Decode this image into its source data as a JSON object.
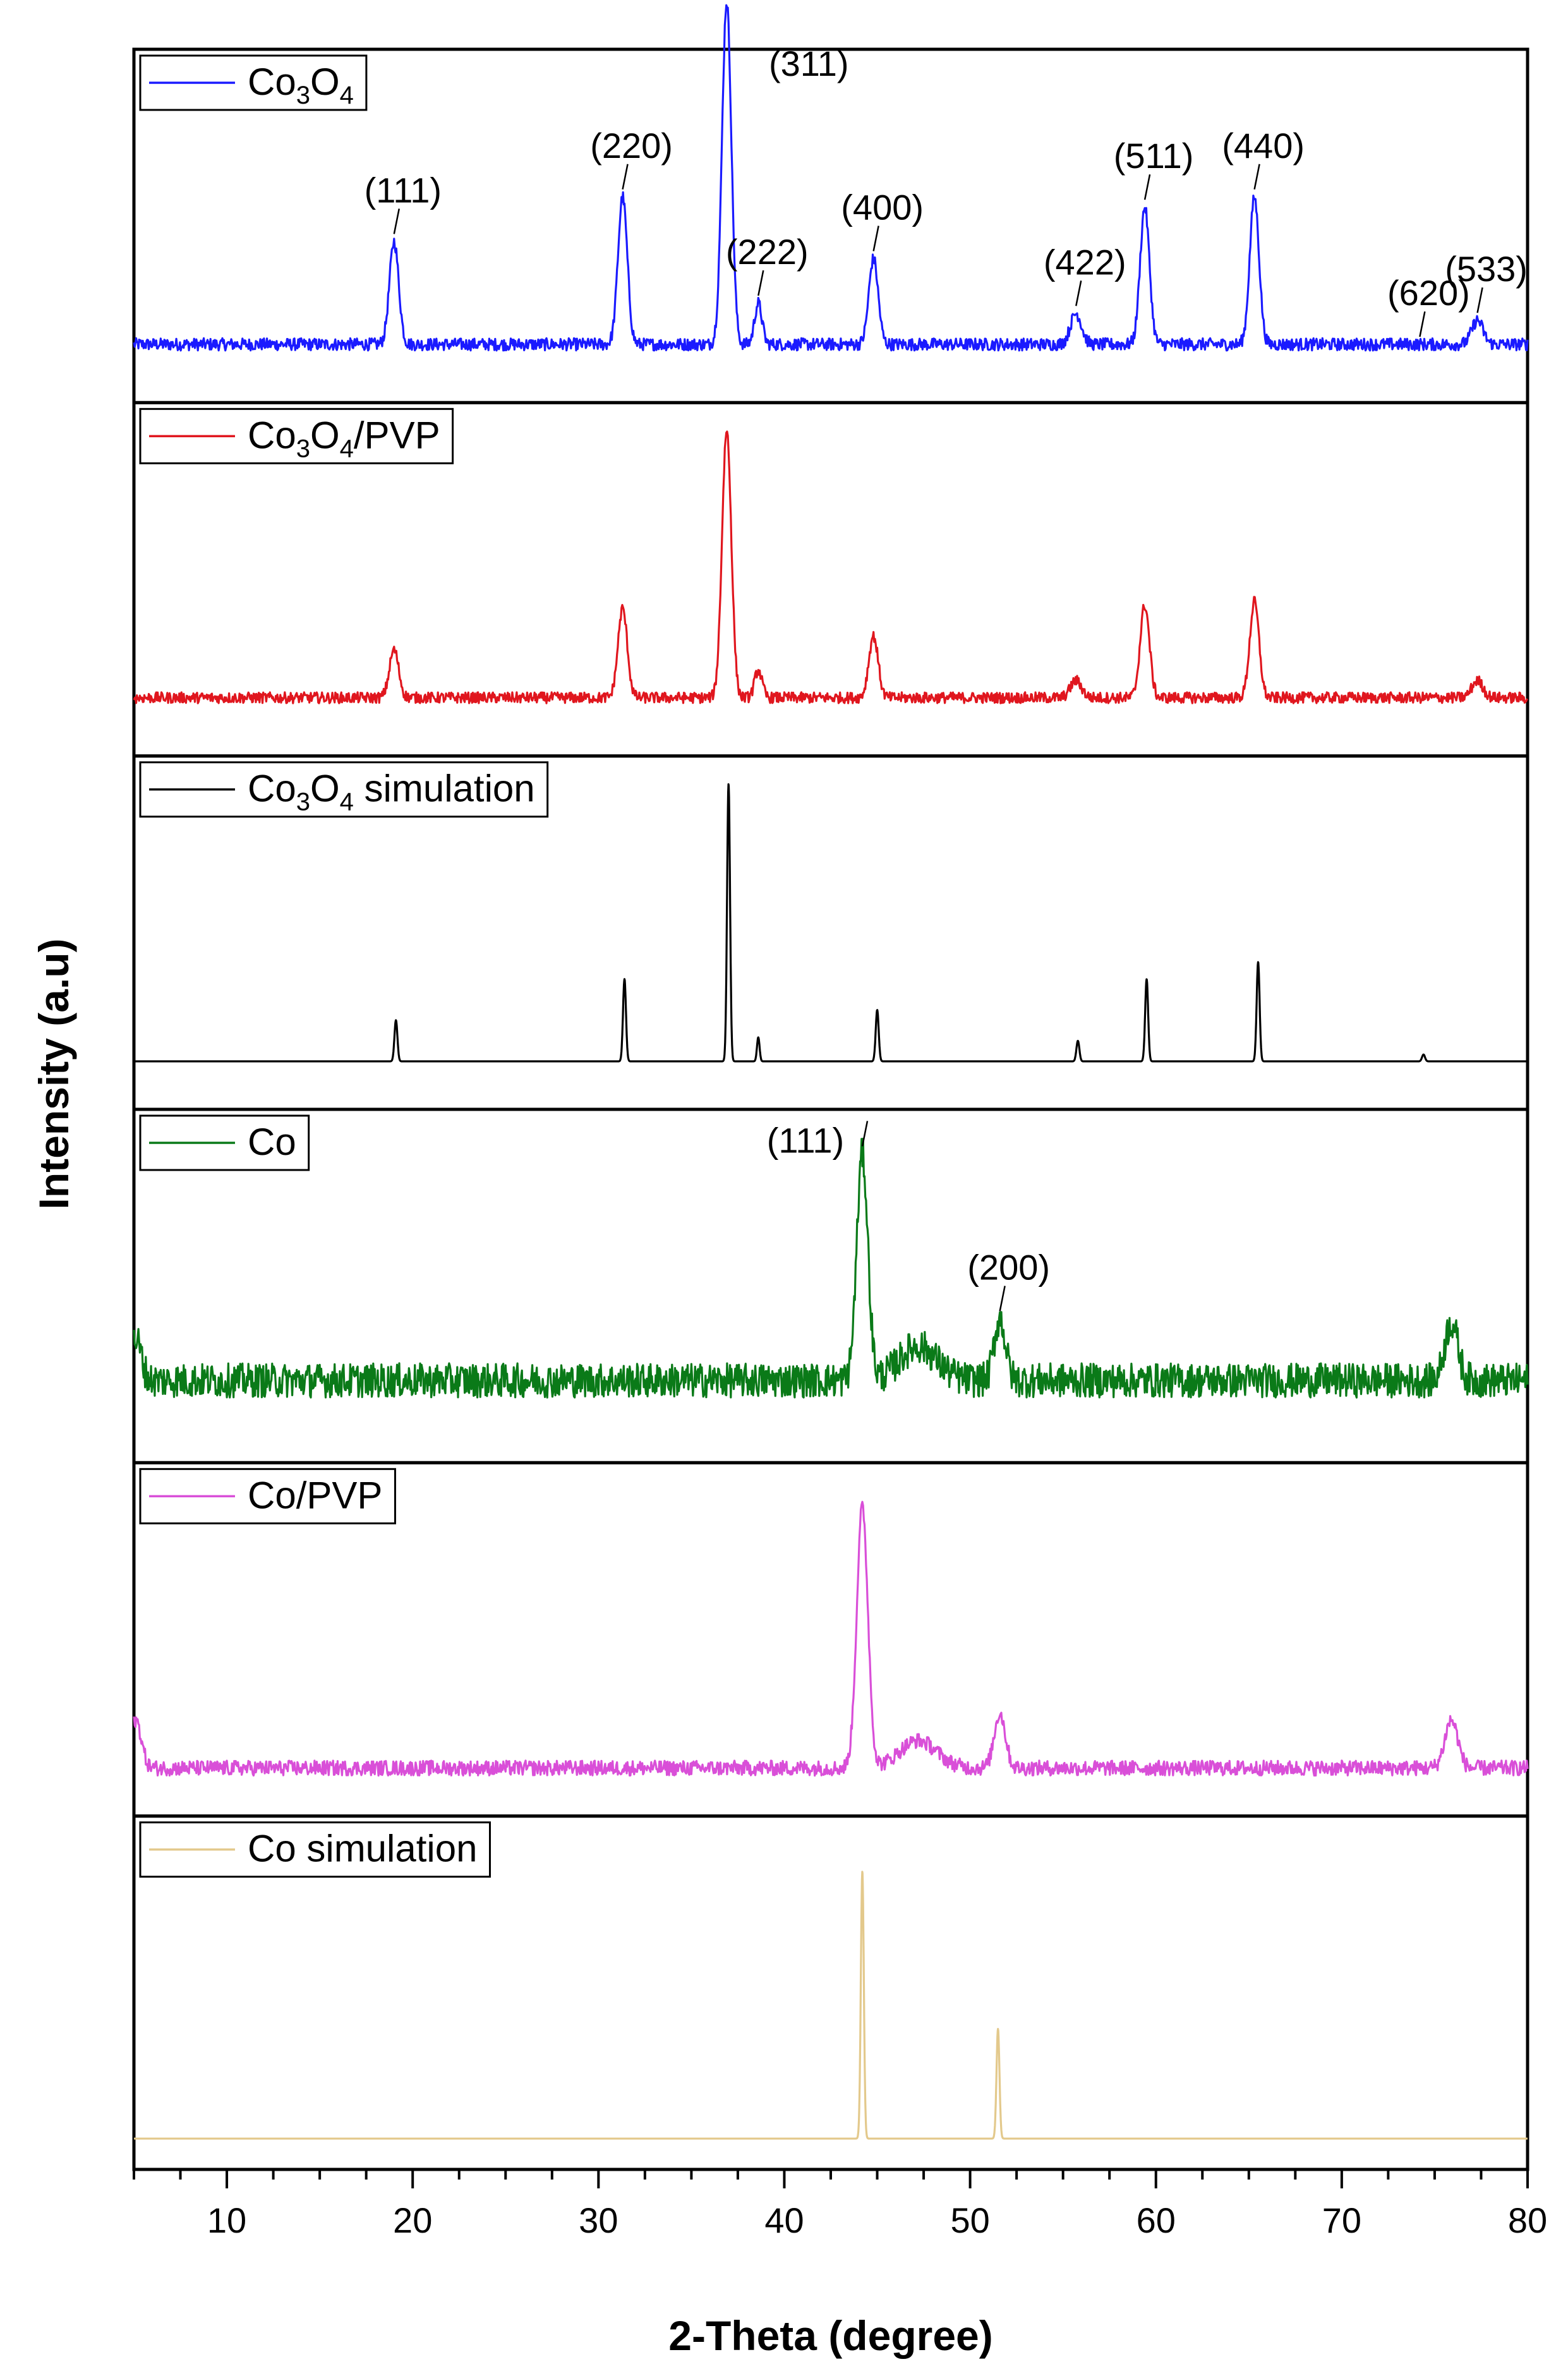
{
  "chart_data": {
    "type": "line",
    "title": "",
    "xlabel": "2-Theta (degree)",
    "ylabel": "Intensity (a.u)",
    "xlim": [
      5,
      80
    ],
    "xticks": [
      10,
      20,
      30,
      40,
      50,
      60,
      70,
      80
    ],
    "grid": false,
    "legend_placement": "top-left of each panel",
    "panels": [
      {
        "legend": {
          "base": "Co",
          "sub1": "3",
          "mid": "O",
          "sub2": "4",
          "suffix": ""
        },
        "color": "#1a1aff",
        "baseline": 0.17,
        "noise": 0.018,
        "peaks": [
          [
            19.0,
            0.3,
            0.25
          ],
          [
            31.3,
            0.43,
            0.25
          ],
          [
            36.9,
            1.0,
            0.25
          ],
          [
            38.6,
            0.12,
            0.2
          ],
          [
            44.8,
            0.25,
            0.25
          ],
          [
            55.7,
            0.09,
            0.3
          ],
          [
            59.4,
            0.4,
            0.25
          ],
          [
            65.3,
            0.43,
            0.25
          ],
          [
            77.3,
            0.07,
            0.3
          ]
        ],
        "annotations": [
          {
            "label": "(111)",
            "x": 19.0
          },
          {
            "label": "(220)",
            "x": 31.3
          },
          {
            "label": "(311)",
            "x": 36.9
          },
          {
            "label": "(222)",
            "x": 38.6
          },
          {
            "label": "(400)",
            "x": 44.8
          },
          {
            "label": "(422)",
            "x": 55.7
          },
          {
            "label": "(511)",
            "x": 59.4
          },
          {
            "label": "(440)",
            "x": 65.3
          },
          {
            "label": "(620)",
            "x": 74.2
          },
          {
            "label": "(533)",
            "x": 77.3
          }
        ]
      },
      {
        "legend": {
          "base": "Co",
          "sub1": "3",
          "mid": "O",
          "sub2": "4",
          "suffix": "/PVP"
        },
        "color": "#e0161e",
        "baseline": 0.17,
        "noise": 0.016,
        "peaks": [
          [
            19.0,
            0.14,
            0.25
          ],
          [
            31.3,
            0.26,
            0.25
          ],
          [
            36.9,
            0.78,
            0.25
          ],
          [
            38.6,
            0.08,
            0.2
          ],
          [
            44.8,
            0.18,
            0.25
          ],
          [
            55.7,
            0.05,
            0.3
          ],
          [
            59.4,
            0.27,
            0.25
          ],
          [
            65.3,
            0.28,
            0.25
          ],
          [
            77.3,
            0.05,
            0.3
          ]
        ],
        "annotations": []
      },
      {
        "legend": {
          "base": "Co",
          "sub1": "3",
          "mid": "O",
          "sub2": "4",
          "suffix": " simulation"
        },
        "color": "#000000",
        "baseline": 0.14,
        "noise": 0.0,
        "peaks": [
          [
            19.1,
            0.12,
            0.08
          ],
          [
            31.4,
            0.24,
            0.08
          ],
          [
            37.0,
            0.81,
            0.08
          ],
          [
            38.6,
            0.07,
            0.07
          ],
          [
            45.0,
            0.15,
            0.08
          ],
          [
            55.8,
            0.06,
            0.08
          ],
          [
            59.5,
            0.24,
            0.08
          ],
          [
            65.5,
            0.29,
            0.08
          ],
          [
            74.4,
            0.02,
            0.08
          ]
        ],
        "annotations": []
      },
      {
        "legend": {
          "base": "Co",
          "sub1": "",
          "mid": "",
          "sub2": "",
          "suffix": ""
        },
        "color": "#0a7a18",
        "baseline": 0.24,
        "noise": 0.05,
        "peaks": [
          [
            44.2,
            0.66,
            0.3
          ],
          [
            47.2,
            0.1,
            1.0
          ],
          [
            51.6,
            0.18,
            0.3
          ],
          [
            75.9,
            0.17,
            0.35
          ],
          [
            5.1,
            0.12,
            0.3
          ]
        ],
        "annotations": [
          {
            "label": "(111)",
            "x": 44.2
          },
          {
            "label": "(200)",
            "x": 51.6
          }
        ]
      },
      {
        "legend": {
          "base": "Co/PVP",
          "sub1": "",
          "mid": "",
          "sub2": "",
          "suffix": ""
        },
        "color": "#d94fd8",
        "baseline": 0.14,
        "noise": 0.022,
        "peaks": [
          [
            44.2,
            0.76,
            0.3
          ],
          [
            47.2,
            0.08,
            1.0
          ],
          [
            51.6,
            0.16,
            0.3
          ],
          [
            75.9,
            0.14,
            0.35
          ],
          [
            5.1,
            0.14,
            0.3
          ]
        ],
        "annotations": []
      },
      {
        "legend": {
          "base": "Co simulation",
          "sub1": "",
          "mid": "",
          "sub2": "",
          "suffix": ""
        },
        "color": "#e3c98c",
        "baseline": 0.09,
        "noise": 0.0,
        "peaks": [
          [
            44.2,
            0.78,
            0.08
          ],
          [
            51.5,
            0.32,
            0.08
          ]
        ],
        "annotations": []
      }
    ]
  }
}
